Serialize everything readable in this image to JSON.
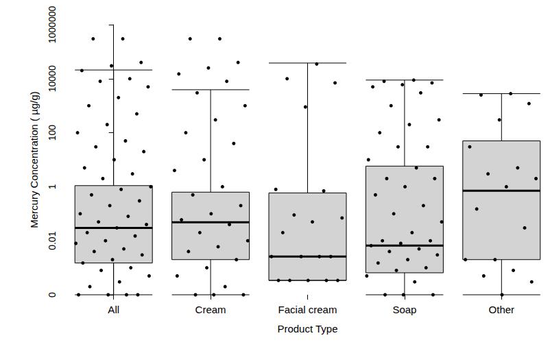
{
  "chart_data": {
    "type": "boxplot",
    "x_label": "Product Type",
    "y_label": "Mercury Concentration ( µg/g)",
    "categories": [
      "All",
      "Cream",
      "Facial cream",
      "Soap",
      "Other"
    ],
    "boxes": [
      [
        0.0001,
        0.0015,
        0.03,
        1.1,
        21000
      ],
      [
        0.0001,
        0.002,
        0.048,
        0.63,
        3900
      ],
      [
        0.00034,
        0.00034,
        0.0026,
        0.59,
        38000
      ],
      [
        0.0001,
        0.00065,
        0.0066,
        5.8,
        8900
      ],
      [
        0.0001,
        0.002,
        0.71,
        50,
        2800
      ]
    ],
    "points": [
      [
        300000,
        300000,
        40000,
        30000,
        20000,
        10000,
        8000,
        5000,
        2000,
        1000,
        500,
        200,
        100,
        50,
        30,
        20,
        10,
        5,
        3,
        2,
        1,
        0.8,
        0.5,
        0.3,
        0.2,
        0.1,
        0.08,
        0.05,
        0.04,
        0.03,
        0.02,
        0.015,
        0.01,
        0.008,
        0.005,
        0.004,
        0.003,
        0.002,
        0.0015,
        0.001,
        0.0008,
        0.0005,
        0.0003,
        0.0002,
        0.0001,
        0.0001,
        0.0001,
        0.0001
      ],
      [
        300000,
        300000,
        40000,
        25000,
        15000,
        8000,
        3000,
        1000,
        300,
        100,
        40,
        10,
        4,
        1,
        0.5,
        0.2,
        0.1,
        0.06,
        0.04,
        0.02,
        0.01,
        0.006,
        0.004,
        0.002,
        0.001,
        0.0005,
        0.0002,
        0.0001,
        0.0001,
        0.0001
      ],
      [
        35000,
        10000,
        7000,
        900,
        0.8,
        0.7,
        0.09,
        0.07,
        0.05,
        0.02,
        0.0026,
        0.0026,
        0.0026,
        0.0026,
        0.00034,
        0.00034,
        0.00034,
        0.00034,
        0.00034
      ],
      [
        8900,
        8000,
        7000,
        6000,
        5000,
        3000,
        1000,
        300,
        200,
        100,
        30,
        30,
        10,
        5,
        2,
        2,
        1,
        0.5,
        0.2,
        0.1,
        0.05,
        0.02,
        0.01,
        0.01,
        0.008,
        0.0066,
        0.005,
        0.004,
        0.003,
        0.002,
        0.0015,
        0.001,
        0.0008,
        0.0005,
        0.0003,
        0.0001,
        0.0001,
        0.0001
      ],
      [
        2800,
        2500,
        1200,
        300,
        30,
        5,
        3,
        2,
        1,
        0.15,
        0.03,
        0.002,
        0.002,
        0.0008,
        0.0005,
        0.0003,
        0.0001
      ]
    ],
    "log": "y",
    "ylim": [
      0.0001,
      1000000
    ],
    "yticks": [
      {
        "value": 0.0001,
        "label": "0"
      },
      0.01,
      1,
      100,
      10000,
      1000000
    ],
    "grid": false,
    "color": "#d3d3d3"
  }
}
